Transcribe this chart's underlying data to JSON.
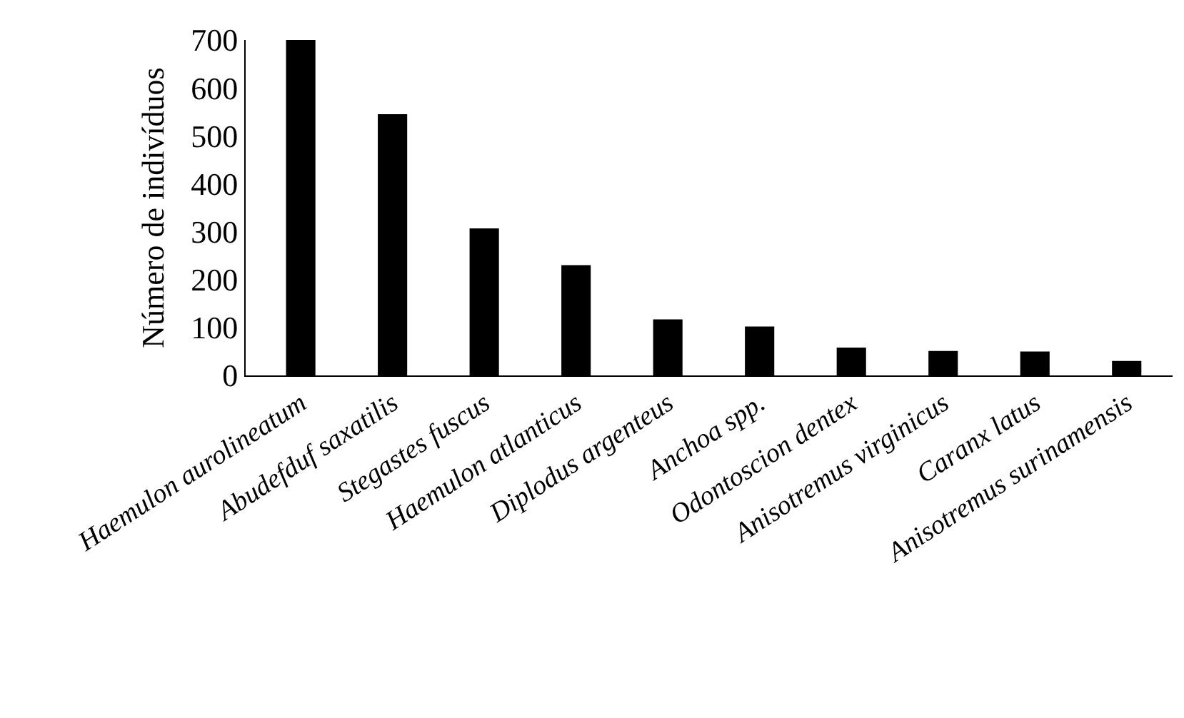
{
  "chart_data": {
    "type": "bar",
    "ylabel": "Número de indivíduos",
    "categories": [
      "Haemulon aurolineatum",
      "Abudefduf saxatilis",
      "Stegastes fuscus",
      "Haemulon atlanticus",
      "Diplodus argenteus",
      "Anchoa spp.",
      "Odontoscion dentex",
      "Anisotremus virginicus",
      "Caranx latus",
      "Anisotremus surinamensis"
    ],
    "values": [
      700,
      545,
      307,
      230,
      117,
      102,
      58,
      51,
      50,
      30
    ],
    "color": "#000000",
    "ylim": [
      0,
      700
    ],
    "yticks": [
      0,
      100,
      200,
      300,
      400,
      500,
      600,
      700
    ],
    "grid": false,
    "legend": false
  }
}
